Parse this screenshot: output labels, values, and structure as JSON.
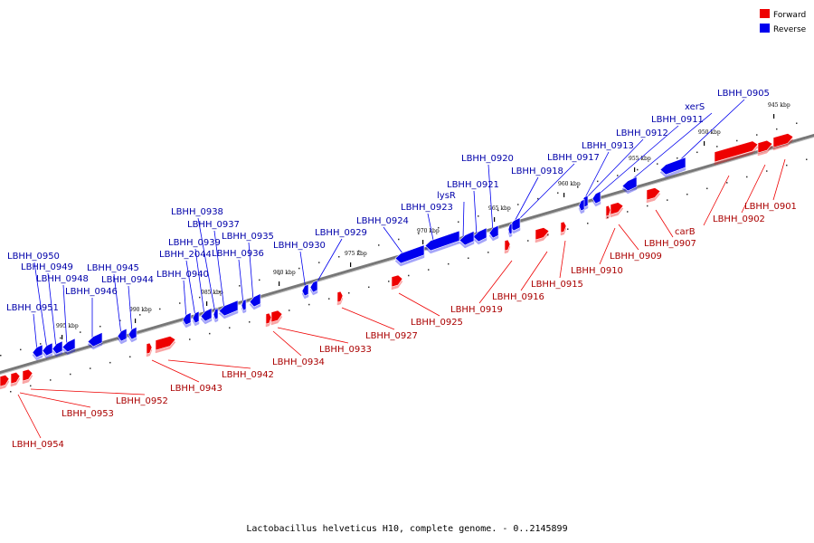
{
  "footer": "Lactobacillus helveticus H10, complete genome. - 0..2145899",
  "legend": [
    {
      "label": "Forward",
      "color": "#ee0000"
    },
    {
      "label": "Reverse",
      "color": "#0000ee"
    }
  ],
  "colors": {
    "forward": "#ee0000",
    "reverse": "#0000ee",
    "axis": "#777777"
  },
  "ticks": [
    "945 kbp",
    "950 kbp",
    "955 kbp",
    "960 kbp",
    "965 kbp",
    "970 kbp",
    "975 kbp",
    "980 kbp",
    "985 kbp",
    "990 kbp",
    "995 kbp"
  ],
  "genes_reverse": [
    "LBHH_0905",
    "xerS",
    "LBHH_0911",
    "LBHH_0912",
    "LBHH_0913",
    "LBHH_0917",
    "LBHH_0918",
    "LBHH_0920",
    "LBHH_0921",
    "lysR",
    "LBHH_0923",
    "LBHH_0924",
    "LBHH_0929",
    "LBHH_0930",
    "LBHH_0935",
    "LBHH_0936",
    "LBHH_0937",
    "LBHH_0938",
    "LBHH_0939",
    "LBHH_2044",
    "LBHH_0940",
    "LBHH_0944",
    "LBHH_0945",
    "LBHH_0946",
    "LBHH_0948",
    "LBHH_0949",
    "LBHH_0950",
    "LBHH_0951"
  ],
  "genes_forward": [
    "LBHH_0901",
    "LBHH_0902",
    "carB",
    "LBHH_0907",
    "LBHH_0909",
    "LBHH_0910",
    "LBHH_0915",
    "LBHH_0916",
    "LBHH_0919",
    "LBHH_0925",
    "LBHH_0927",
    "LBHH_0933",
    "LBHH_0934",
    "LBHH_0942",
    "LBHH_0943",
    "LBHH_0952",
    "LBHH_0953",
    "LBHH_0954"
  ]
}
